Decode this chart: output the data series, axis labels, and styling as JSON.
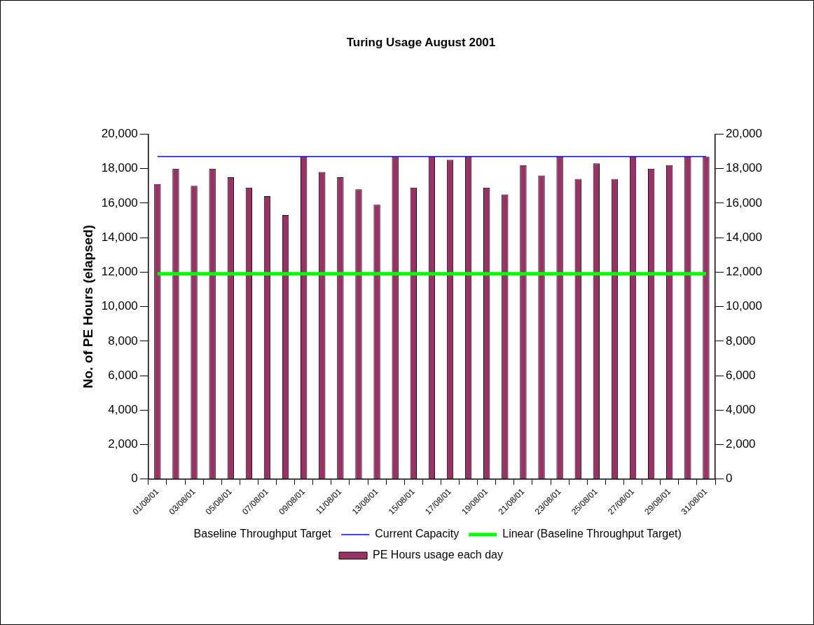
{
  "chart_data": {
    "type": "bar",
    "title": "Turing Usage August 2001",
    "ylabel": "No. of PE Hours (elapsed)",
    "categories": [
      "01/08/01",
      null,
      "03/08/01",
      null,
      "05/08/01",
      null,
      "07/08/01",
      null,
      "09/08/01",
      null,
      "11/08/01",
      null,
      "13/08/01",
      null,
      "15/08/01",
      null,
      "17/08/01",
      null,
      "19/08/01",
      null,
      "21/08/01",
      null,
      "23/08/01",
      null,
      "25/08/01",
      null,
      "27/08/01",
      null,
      "29/08/01",
      null,
      "31/08/01"
    ],
    "series": [
      {
        "name": "PE Hours usage each day",
        "color": "#993366",
        "values": [
          17100,
          18000,
          17000,
          18000,
          17500,
          16900,
          16400,
          15300,
          18700,
          17800,
          17500,
          16800,
          15900,
          18700,
          16900,
          18700,
          18500,
          18700,
          16900,
          16500,
          18200,
          17600,
          18700,
          17400,
          18300,
          17400,
          18700,
          18000,
          18200,
          18700,
          18700
        ]
      },
      {
        "name": "Baseline Throughput Target",
        "type": "line",
        "values": [
          null,
          null,
          null,
          null,
          null,
          null,
          null,
          null,
          null,
          null,
          null,
          null,
          null,
          null,
          null,
          null,
          null,
          null,
          null,
          null,
          null,
          null,
          null,
          null,
          null,
          null,
          null,
          null,
          null,
          null,
          null
        ]
      },
      {
        "name": "Current Capacity",
        "type": "line",
        "color": "#0000ff",
        "values": [
          18700,
          18700,
          18700,
          18700,
          18700,
          18700,
          18700,
          18700,
          18700,
          18700,
          18700,
          18700,
          18700,
          18700,
          18700,
          18700,
          18700,
          18700,
          18700,
          18700,
          18700,
          18700,
          18700,
          18700,
          18700,
          18700,
          18700,
          18700,
          18700,
          18700,
          18700
        ]
      },
      {
        "name": "Linear (Baseline Throughput Target)",
        "type": "line",
        "color": "#00ff00",
        "values": [
          11900,
          11900,
          11900,
          11900,
          11900,
          11900,
          11900,
          11900,
          11900,
          11900,
          11900,
          11900,
          11900,
          11900,
          11900,
          11900,
          11900,
          11900,
          11900,
          11900,
          11900,
          11900,
          11900,
          11900,
          11900,
          11900,
          11900,
          11900,
          11900,
          11900,
          11900
        ]
      }
    ],
    "ylim": [
      0,
      20000
    ],
    "yticks": [
      0,
      {
        "value": 2000,
        "label": "2,000"
      },
      {
        "value": 4000,
        "label": "4,000"
      },
      {
        "value": 6000,
        "label": "6,000"
      },
      {
        "value": 8000,
        "label": "8,000"
      },
      {
        "value": 10000,
        "label": "10,000"
      },
      {
        "value": 12000,
        "label": "12,000"
      },
      {
        "value": 14000,
        "label": "14,000"
      },
      {
        "value": 16000,
        "label": "16,000"
      },
      {
        "value": 18000,
        "label": "18,000"
      },
      {
        "value": 20000,
        "label": "20,000"
      }
    ],
    "y2lim": [
      0,
      20000
    ],
    "y2ticks": [
      0,
      {
        "value": 2000,
        "label": "2,000"
      },
      {
        "value": 4000,
        "label": "4,000"
      },
      {
        "value": 6000,
        "label": "6,000"
      },
      {
        "value": 8000,
        "label": "8,000"
      },
      {
        "value": 10000,
        "label": "10,000"
      },
      {
        "value": 12000,
        "label": "12,000"
      },
      {
        "value": 14000,
        "label": "14,000"
      },
      {
        "value": 16000,
        "label": "16,000"
      },
      {
        "value": 18000,
        "label": "18,000"
      },
      {
        "value": 20000,
        "label": "20,000"
      }
    ],
    "grid": false,
    "legend": "bottom",
    "marker": "none"
  }
}
